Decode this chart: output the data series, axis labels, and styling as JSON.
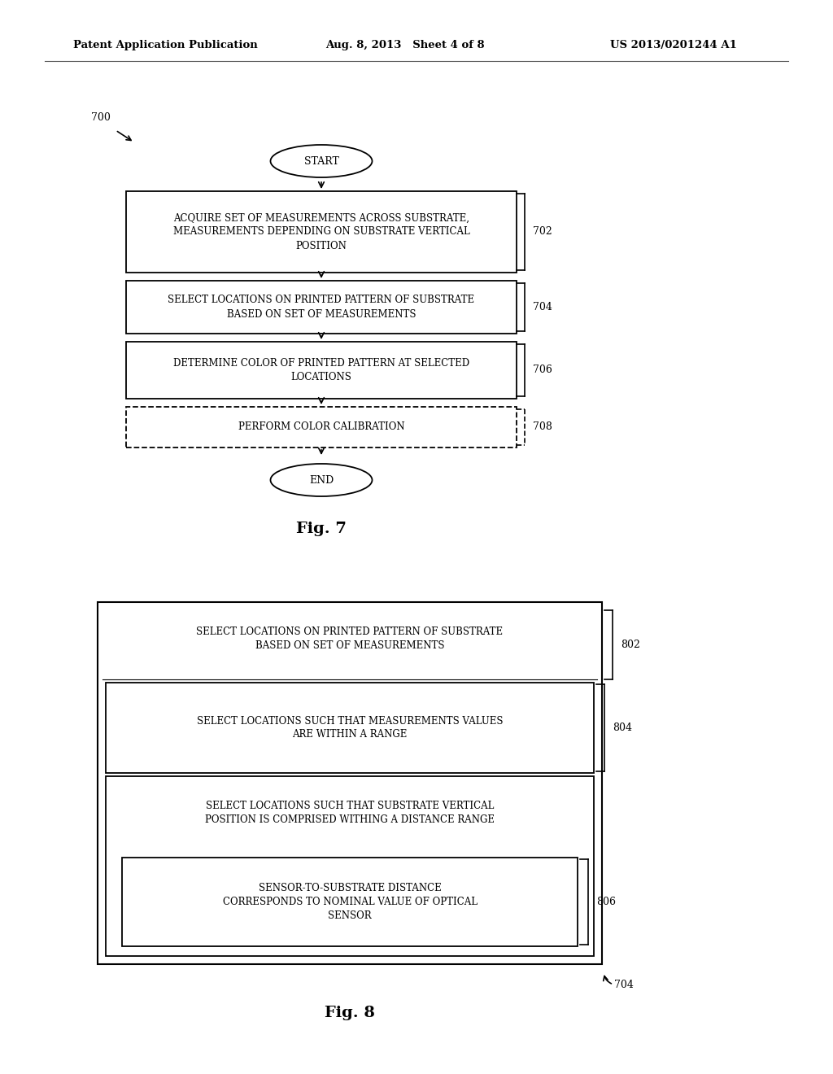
{
  "bg_color": "#ffffff",
  "text_color": "#000000",
  "header_left": "Patent Application Publication",
  "header_mid": "Aug. 8, 2013   Sheet 4 of 8",
  "header_right": "US 2013/0201244 A1",
  "fig7_label": "Fig. 7",
  "fig8_label": "Fig. 8",
  "fig7_ref": "700",
  "node702_text": "ACQUIRE SET OF MEASUREMENTS ACROSS SUBSTRATE,\nMEASUREMENTS DEPENDING ON SUBSTRATE VERTICAL\nPOSITION",
  "node704_text": "SELECT LOCATIONS ON PRINTED PATTERN OF SUBSTRATE\nBASED ON SET OF MEASUREMENTS",
  "node706_text": "DETERMINE COLOR OF PRINTED PATTERN AT SELECTED\nLOCATIONS",
  "node708_text": "PERFORM COLOR CALIBRATION",
  "fig8_outer_text": "SELECT LOCATIONS ON PRINTED PATTERN OF SUBSTRATE\nBASED ON SET OF MEASUREMENTS",
  "fig8_802_text": "SELECT LOCATIONS SUCH THAT MEASUREMENTS VALUES\nARE WITHIN A RANGE",
  "fig8_804_text": "SELECT LOCATIONS SUCH THAT SUBSTRATE VERTICAL\nPOSITION IS COMPRISED WITHING A DISTANCE RANGE",
  "fig8_806_text": "SENSOR-TO-SUBSTRATE DISTANCE\nCORRESPONDS TO NOMINAL VALUE OF OPTICAL\nSENSOR",
  "label_702": "702",
  "label_704_fig7": "704",
  "label_706": "706",
  "label_708": "708",
  "label_704_fig8": "704",
  "label_802": "802",
  "label_804": "804",
  "label_806": "806"
}
